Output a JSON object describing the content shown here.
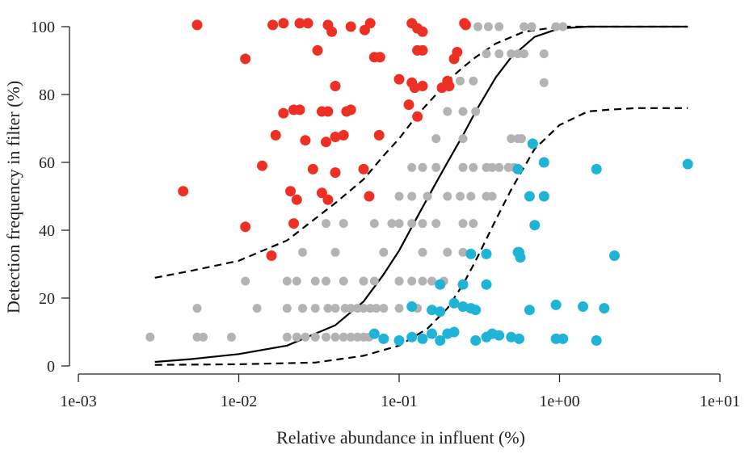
{
  "chart_data": {
    "type": "scatter",
    "title": "",
    "xlabel": "Relative abundance in influent (%)",
    "ylabel": "Detection frequency in filter (%)",
    "x_scale": "log",
    "xlim": [
      0.001,
      10
    ],
    "ylim": [
      0,
      100
    ],
    "x_ticks": [
      0.001,
      0.01,
      0.1,
      1,
      10
    ],
    "x_tick_labels": [
      "1e-03",
      "1e-02",
      "1e-01",
      "1e+00",
      "1e+01"
    ],
    "y_ticks": [
      0,
      20,
      40,
      60,
      80,
      100
    ],
    "y_tick_labels": [
      "0",
      "20",
      "40",
      "60",
      "80",
      "100"
    ],
    "grid": false,
    "colors": {
      "red": "#ee3024",
      "grey": "#b3b3b3",
      "blue": "#1fb3d6",
      "curve": "#000000"
    },
    "series": [
      {
        "color_key": "red",
        "points": [
          [
            0.0055,
            100.5
          ],
          [
            0.0163,
            100.5
          ],
          [
            0.019,
            101
          ],
          [
            0.024,
            101
          ],
          [
            0.027,
            101
          ],
          [
            0.036,
            100.5
          ],
          [
            0.038,
            98.5
          ],
          [
            0.05,
            100
          ],
          [
            0.061,
            99
          ],
          [
            0.066,
            101
          ],
          [
            0.12,
            101
          ],
          [
            0.13,
            99.5
          ],
          [
            0.14,
            98.5
          ],
          [
            0.255,
            101
          ],
          [
            0.26,
            100.5
          ],
          [
            0.011,
            90.5
          ],
          [
            0.031,
            93
          ],
          [
            0.07,
            91
          ],
          [
            0.076,
            91
          ],
          [
            0.13,
            93
          ],
          [
            0.14,
            93
          ],
          [
            0.22,
            90.5
          ],
          [
            0.23,
            92.5
          ],
          [
            0.04,
            82.5
          ],
          [
            0.1,
            84.5
          ],
          [
            0.12,
            83.5
          ],
          [
            0.125,
            82
          ],
          [
            0.14,
            82.5
          ],
          [
            0.185,
            82
          ],
          [
            0.2,
            84
          ],
          [
            0.205,
            82.5
          ],
          [
            0.019,
            74.5
          ],
          [
            0.022,
            75.5
          ],
          [
            0.024,
            75.5
          ],
          [
            0.033,
            75
          ],
          [
            0.036,
            75
          ],
          [
            0.047,
            75
          ],
          [
            0.05,
            75.5
          ],
          [
            0.115,
            77
          ],
          [
            0.13,
            73.5
          ],
          [
            0.017,
            68
          ],
          [
            0.026,
            66.5
          ],
          [
            0.035,
            66
          ],
          [
            0.04,
            67.5
          ],
          [
            0.045,
            68
          ],
          [
            0.075,
            68
          ],
          [
            0.0045,
            51.5
          ],
          [
            0.014,
            59
          ],
          [
            0.021,
            51.5
          ],
          [
            0.023,
            49
          ],
          [
            0.029,
            58
          ],
          [
            0.033,
            51
          ],
          [
            0.036,
            49
          ],
          [
            0.04,
            57
          ],
          [
            0.06,
            58
          ],
          [
            0.065,
            50
          ],
          [
            0.011,
            41
          ],
          [
            0.022,
            42
          ],
          [
            0.016,
            32.5
          ]
        ]
      },
      {
        "color_key": "grey",
        "points": [
          [
            0.31,
            100
          ],
          [
            0.36,
            100
          ],
          [
            0.42,
            100
          ],
          [
            0.6,
            100
          ],
          [
            0.67,
            100
          ],
          [
            0.95,
            100
          ],
          [
            1.05,
            100
          ],
          [
            0.35,
            92
          ],
          [
            0.42,
            92
          ],
          [
            0.5,
            92
          ],
          [
            0.55,
            92
          ],
          [
            0.6,
            92
          ],
          [
            0.8,
            92
          ],
          [
            0.24,
            84
          ],
          [
            0.29,
            84
          ],
          [
            0.8,
            83.5
          ],
          [
            0.2,
            75
          ],
          [
            0.25,
            75
          ],
          [
            0.3,
            75
          ],
          [
            0.17,
            67
          ],
          [
            0.25,
            67
          ],
          [
            0.5,
            67
          ],
          [
            0.55,
            67
          ],
          [
            0.58,
            67
          ],
          [
            0.12,
            58.5
          ],
          [
            0.14,
            58.5
          ],
          [
            0.17,
            58.5
          ],
          [
            0.25,
            58.5
          ],
          [
            0.29,
            58.5
          ],
          [
            0.35,
            58.5
          ],
          [
            0.38,
            58.5
          ],
          [
            0.42,
            58.5
          ],
          [
            0.48,
            58.5
          ],
          [
            0.52,
            58.5
          ],
          [
            0.1,
            50
          ],
          [
            0.12,
            50
          ],
          [
            0.15,
            50
          ],
          [
            0.2,
            50
          ],
          [
            0.24,
            50
          ],
          [
            0.28,
            50
          ],
          [
            0.35,
            50
          ],
          [
            0.38,
            50
          ],
          [
            0.035,
            42
          ],
          [
            0.045,
            42
          ],
          [
            0.07,
            42
          ],
          [
            0.09,
            42
          ],
          [
            0.1,
            42
          ],
          [
            0.12,
            42
          ],
          [
            0.14,
            42
          ],
          [
            0.17,
            42
          ],
          [
            0.25,
            42
          ],
          [
            0.29,
            42
          ],
          [
            0.025,
            33.5
          ],
          [
            0.04,
            33.5
          ],
          [
            0.08,
            33.5
          ],
          [
            0.14,
            33.5
          ],
          [
            0.2,
            33.5
          ],
          [
            0.25,
            33.5
          ],
          [
            0.011,
            25
          ],
          [
            0.02,
            25
          ],
          [
            0.023,
            25
          ],
          [
            0.03,
            25
          ],
          [
            0.035,
            25
          ],
          [
            0.045,
            25
          ],
          [
            0.06,
            25
          ],
          [
            0.07,
            25
          ],
          [
            0.1,
            25
          ],
          [
            0.12,
            25
          ],
          [
            0.14,
            25
          ],
          [
            0.16,
            25
          ],
          [
            0.19,
            25
          ],
          [
            0.0055,
            17
          ],
          [
            0.013,
            17
          ],
          [
            0.02,
            17
          ],
          [
            0.025,
            17
          ],
          [
            0.03,
            17
          ],
          [
            0.036,
            17
          ],
          [
            0.04,
            17
          ],
          [
            0.046,
            17
          ],
          [
            0.05,
            17
          ],
          [
            0.055,
            17
          ],
          [
            0.06,
            17
          ],
          [
            0.066,
            17
          ],
          [
            0.072,
            17
          ],
          [
            0.08,
            17
          ],
          [
            0.1,
            17
          ],
          [
            0.13,
            17
          ],
          [
            0.0028,
            8.5
          ],
          [
            0.0055,
            8.5
          ],
          [
            0.006,
            8.5
          ],
          [
            0.009,
            8.5
          ],
          [
            0.02,
            8.5
          ],
          [
            0.023,
            8.5
          ],
          [
            0.026,
            8.5
          ],
          [
            0.03,
            8.5
          ],
          [
            0.035,
            8.5
          ],
          [
            0.04,
            8.5
          ],
          [
            0.045,
            8.5
          ],
          [
            0.05,
            8.5
          ],
          [
            0.055,
            8.5
          ],
          [
            0.06,
            8.5
          ],
          [
            0.065,
            8.5
          ]
        ]
      },
      {
        "color_key": "blue",
        "points": [
          [
            0.68,
            65.5
          ],
          [
            0.55,
            58
          ],
          [
            0.8,
            60
          ],
          [
            1.7,
            58
          ],
          [
            6.3,
            59.5
          ],
          [
            0.65,
            50
          ],
          [
            0.8,
            50
          ],
          [
            0.7,
            41.5
          ],
          [
            0.28,
            33
          ],
          [
            0.35,
            33
          ],
          [
            0.55,
            33.5
          ],
          [
            0.56,
            33.5
          ],
          [
            0.57,
            32
          ],
          [
            2.2,
            32.5
          ],
          [
            0.18,
            24
          ],
          [
            0.25,
            24
          ],
          [
            0.35,
            24
          ],
          [
            0.12,
            17.5
          ],
          [
            0.16,
            16.5
          ],
          [
            0.18,
            16
          ],
          [
            0.22,
            18.5
          ],
          [
            0.25,
            17.5
          ],
          [
            0.28,
            17
          ],
          [
            0.3,
            16.5
          ],
          [
            0.65,
            16.5
          ],
          [
            0.95,
            18
          ],
          [
            1.4,
            17.5
          ],
          [
            1.9,
            17
          ],
          [
            0.07,
            9.5
          ],
          [
            0.08,
            8
          ],
          [
            0.1,
            7.5
          ],
          [
            0.12,
            8.5
          ],
          [
            0.14,
            8
          ],
          [
            0.16,
            9.5
          ],
          [
            0.18,
            7.5
          ],
          [
            0.2,
            9.5
          ],
          [
            0.22,
            10
          ],
          [
            0.3,
            7.5
          ],
          [
            0.35,
            8.5
          ],
          [
            0.38,
            9.5
          ],
          [
            0.42,
            9
          ],
          [
            0.5,
            8.5
          ],
          [
            0.56,
            8
          ],
          [
            0.95,
            8
          ],
          [
            1.05,
            8
          ],
          [
            1.7,
            7.5
          ]
        ]
      }
    ],
    "curves": [
      {
        "style": "solid",
        "x": [
          0.003,
          0.005,
          0.01,
          0.02,
          0.04,
          0.06,
          0.08,
          0.1,
          0.13,
          0.17,
          0.2,
          0.25,
          0.3,
          0.4,
          0.5,
          0.7,
          1.0,
          1.5,
          2,
          3,
          6.3
        ],
        "y": [
          1.2,
          2,
          3.5,
          6,
          12,
          19,
          27,
          34,
          44,
          54,
          60,
          68,
          75,
          85,
          91,
          97,
          99.5,
          100,
          100,
          100,
          100
        ]
      },
      {
        "style": "dashed",
        "x": [
          0.003,
          0.005,
          0.01,
          0.02,
          0.04,
          0.06,
          0.08,
          0.1,
          0.13,
          0.17,
          0.2,
          0.25,
          0.3,
          0.4,
          0.6,
          1.0,
          2,
          6.3
        ],
        "y": [
          26,
          28,
          31,
          37,
          48,
          55,
          62,
          67,
          74,
          80,
          84,
          88,
          91,
          95,
          98.5,
          100,
          100,
          100
        ]
      },
      {
        "style": "dashed",
        "x": [
          0.003,
          0.01,
          0.03,
          0.06,
          0.1,
          0.15,
          0.2,
          0.25,
          0.3,
          0.4,
          0.5,
          0.7,
          1.0,
          1.5,
          2,
          3,
          6.3
        ],
        "y": [
          0.3,
          0.5,
          1,
          3,
          6,
          11,
          17,
          24,
          31,
          43,
          52,
          64,
          71,
          75,
          75.5,
          76,
          76
        ]
      }
    ]
  }
}
